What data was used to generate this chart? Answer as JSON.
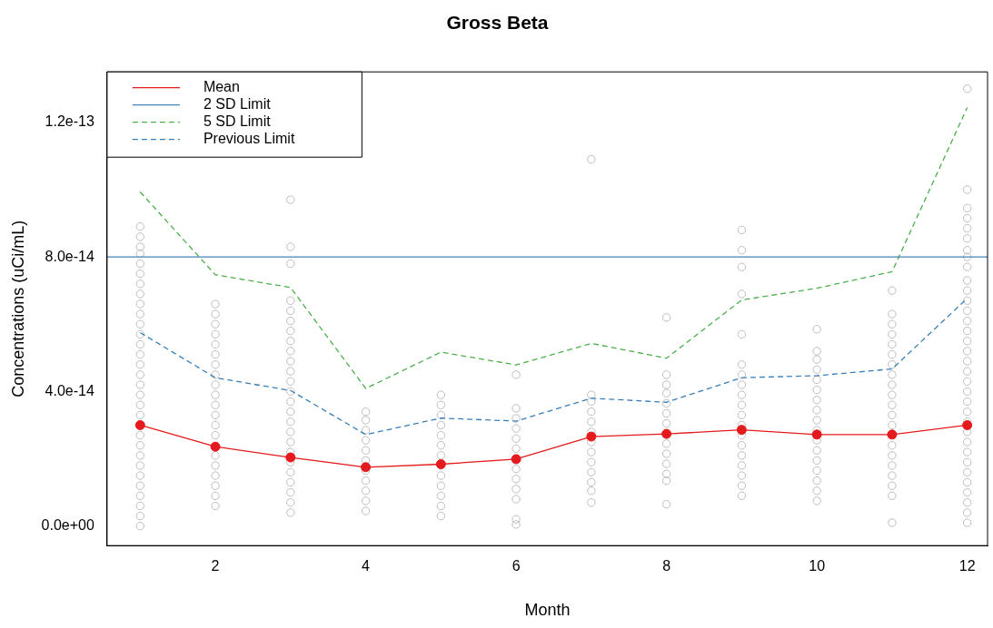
{
  "chart_data": {
    "type": "line",
    "title": "Gross Beta",
    "xlabel": "Month",
    "ylabel": "Concentrations (uCi/mL)",
    "x": [
      1,
      2,
      3,
      4,
      5,
      6,
      7,
      8,
      9,
      10,
      11,
      12
    ],
    "xlim": [
      0.56,
      12.27
    ],
    "xticks": [
      2,
      4,
      6,
      8,
      10,
      12
    ],
    "ylim": [
      -5.8e-15,
      1.35e-13
    ],
    "yticks": [
      {
        "value": 0,
        "label": "0.0e+00"
      },
      {
        "value": 4e-14,
        "label": "4.0e-14"
      },
      {
        "value": 8e-14,
        "label": "8.0e-14"
      },
      {
        "value": 1.2e-13,
        "label": "1.2e-13"
      }
    ],
    "grid": false,
    "legend": "top left",
    "series": [
      {
        "type": "scatter",
        "color": "#bebebe",
        "marker": "circle",
        "x": [
          1,
          1,
          1,
          1,
          1,
          1,
          1,
          1,
          1,
          1,
          1,
          1,
          1,
          1,
          1,
          1,
          1,
          1,
          1,
          1,
          1,
          1,
          1,
          1,
          1,
          1,
          1,
          1,
          1,
          1,
          2,
          2,
          2,
          2,
          2,
          2,
          2,
          2,
          2,
          2,
          2,
          2,
          2,
          2,
          2,
          2,
          2,
          2,
          2,
          2,
          3,
          3,
          3,
          3,
          3,
          3,
          3,
          3,
          3,
          3,
          3,
          3,
          3,
          3,
          3,
          3,
          3,
          3,
          3,
          3,
          3,
          3,
          3,
          3,
          3,
          4,
          4,
          4,
          4,
          4,
          4,
          4,
          4,
          4,
          4,
          4,
          5,
          5,
          5,
          5,
          5,
          5,
          5,
          5,
          5,
          5,
          5,
          5,
          5,
          6,
          6,
          6,
          6,
          6,
          6,
          6,
          6,
          6,
          6,
          6,
          6,
          7,
          7,
          7,
          7,
          7,
          7,
          7,
          7,
          7,
          7,
          7,
          7,
          7,
          8,
          8,
          8,
          8,
          8,
          8,
          8,
          8,
          8,
          8,
          8,
          8,
          8,
          9,
          9,
          9,
          9,
          9,
          9,
          9,
          9,
          9,
          9,
          9,
          9,
          9,
          9,
          9,
          9,
          9,
          9,
          9,
          10,
          10,
          10,
          10,
          10,
          10,
          10,
          10,
          10,
          10,
          10,
          10,
          10,
          10,
          10,
          10,
          10,
          11,
          11,
          11,
          11,
          11,
          11,
          11,
          11,
          11,
          11,
          11,
          11,
          11,
          11,
          11,
          11,
          11,
          11,
          11,
          11,
          12,
          12,
          12,
          12,
          12,
          12,
          12,
          12,
          12,
          12,
          12,
          12,
          12,
          12,
          12,
          12,
          12,
          12,
          12,
          12,
          12,
          12,
          12,
          12,
          12,
          12,
          12,
          12,
          12,
          12,
          12,
          12,
          12,
          12
        ],
        "values": [
          0,
          3e-15,
          6e-15,
          9e-15,
          1.2e-14,
          1.5e-14,
          1.8e-14,
          2.1e-14,
          2.4e-14,
          2.7e-14,
          3.3e-14,
          3.6e-14,
          3.9e-14,
          4.2e-14,
          4.5e-14,
          4.8e-14,
          5.1e-14,
          5.4e-14,
          5.7e-14,
          6e-14,
          6.3e-14,
          6.6e-14,
          6.9e-14,
          7.2e-14,
          7.5e-14,
          7.8e-14,
          8.1e-14,
          8.3e-14,
          8.6e-14,
          8.9e-14,
          6e-15,
          9e-15,
          1.2e-14,
          1.5e-14,
          1.8e-14,
          2.1e-14,
          2.7e-14,
          3e-14,
          3.3e-14,
          3.6e-14,
          3.9e-14,
          4.2e-14,
          4.5e-14,
          4.8e-14,
          5.1e-14,
          5.4e-14,
          5.7e-14,
          6e-14,
          6.3e-14,
          6.6e-14,
          4e-15,
          7e-15,
          1e-14,
          1.3e-14,
          1.6e-14,
          1.9e-14,
          2.2e-14,
          2.5e-14,
          2.8e-14,
          3.1e-14,
          3.4e-14,
          3.7e-14,
          4e-14,
          4.3e-14,
          4.6e-14,
          4.9e-14,
          5.2e-14,
          5.5e-14,
          5.8e-14,
          6.1e-14,
          6.4e-14,
          6.7e-14,
          7.8e-14,
          8.3e-14,
          9.7e-14,
          4.5e-15,
          7.5e-15,
          1.05e-14,
          1.35e-14,
          1.65e-14,
          1.95e-14,
          2.25e-14,
          2.55e-14,
          2.85e-14,
          3.15e-14,
          3.4e-14,
          3e-15,
          6e-15,
          9e-15,
          1.2e-14,
          1.5e-14,
          1.8e-14,
          2.1e-14,
          2.4e-14,
          2.7e-14,
          3e-14,
          3.3e-14,
          3.6e-14,
          3.9e-14,
          5e-16,
          2e-15,
          8e-15,
          1.1e-14,
          1.4e-14,
          1.7e-14,
          2.3e-14,
          2.6e-14,
          2.9e-14,
          3.2e-14,
          3.5e-14,
          4.5e-14,
          7e-15,
          1.05e-14,
          1.3e-14,
          1.6e-14,
          1.9e-14,
          2.2e-14,
          2.5e-14,
          2.8e-14,
          3.1e-14,
          3.4e-14,
          3.7e-14,
          3.9e-14,
          1.09e-13,
          6.5e-15,
          1.35e-14,
          1.55e-14,
          1.85e-14,
          2.15e-14,
          2.45e-14,
          3.05e-14,
          3.35e-14,
          3.65e-14,
          3.95e-14,
          4.2e-14,
          4.5e-14,
          6.2e-14,
          9e-15,
          1.2e-14,
          1.5e-14,
          1.8e-14,
          2.1e-14,
          2.4e-14,
          2.7e-14,
          3e-14,
          3.3e-14,
          3.6e-14,
          3.9e-14,
          4.2e-14,
          4.5e-14,
          4.8e-14,
          5.7e-14,
          6.9e-14,
          7.7e-14,
          8.2e-14,
          8.8e-14,
          7.5e-15,
          1.05e-14,
          1.35e-14,
          1.65e-14,
          1.95e-14,
          2.25e-14,
          2.55e-14,
          2.85e-14,
          3.15e-14,
          3.45e-14,
          3.75e-14,
          4.05e-14,
          4.35e-14,
          4.65e-14,
          4.95e-14,
          5.2e-14,
          5.85e-14,
          1e-15,
          9e-15,
          1.2e-14,
          1.5e-14,
          1.8e-14,
          2.1e-14,
          2.4e-14,
          3e-14,
          3.3e-14,
          3.6e-14,
          3.9e-14,
          4.2e-14,
          4.5e-14,
          4.8e-14,
          5.1e-14,
          5.4e-14,
          5.7e-14,
          6e-14,
          6.3e-14,
          7e-14,
          1e-15,
          4e-15,
          7e-15,
          1e-14,
          1.3e-14,
          1.6e-14,
          1.9e-14,
          2.2e-14,
          2.5e-14,
          2.8e-14,
          3.1e-14,
          3.4e-14,
          3.7e-14,
          4e-14,
          4.3e-14,
          4.6e-14,
          4.9e-14,
          5.2e-14,
          5.5e-14,
          5.8e-14,
          6.1e-14,
          6.4e-14,
          6.7e-14,
          7e-14,
          7.3e-14,
          7.7e-14,
          8e-14,
          8.2e-14,
          8.55e-14,
          8.85e-14,
          9.15e-14,
          9.45e-14,
          1e-13,
          1.3e-13
        ]
      },
      {
        "name": "Mean",
        "color": "#e41a1c",
        "marker": "circle",
        "line_style": "solid",
        "values": [
          3e-14,
          2.36e-14,
          2.04e-14,
          1.75e-14,
          1.84e-14,
          1.99e-14,
          2.66e-14,
          2.74e-14,
          2.86e-14,
          2.72e-14,
          2.72e-14,
          3e-14
        ]
      },
      {
        "name": "2 SD Limit",
        "color": "#4682b4",
        "marker": "none",
        "line_style": "solid",
        "x": [
          0.56,
          12.27
        ],
        "values": [
          8e-14,
          8e-14
        ]
      },
      {
        "name": "5 SD Limit",
        "color": "#4daf4a",
        "marker": "none",
        "line_style": "dashed",
        "values": [
          9.93e-14,
          7.47e-14,
          7.09e-14,
          4.09e-14,
          5.17e-14,
          4.79e-14,
          5.43e-14,
          4.99e-14,
          6.72e-14,
          7.07e-14,
          7.56e-14,
          1.244e-13
        ]
      },
      {
        "name": "Previous Limit",
        "color": "#377eb8",
        "marker": "none",
        "line_style": "dashed",
        "values": [
          5.75e-14,
          4.41e-14,
          4.03e-14,
          2.72e-14,
          3.21e-14,
          3.12e-14,
          3.8e-14,
          3.68e-14,
          4.41e-14,
          4.47e-14,
          4.67e-14,
          6.77e-14
        ]
      }
    ]
  }
}
